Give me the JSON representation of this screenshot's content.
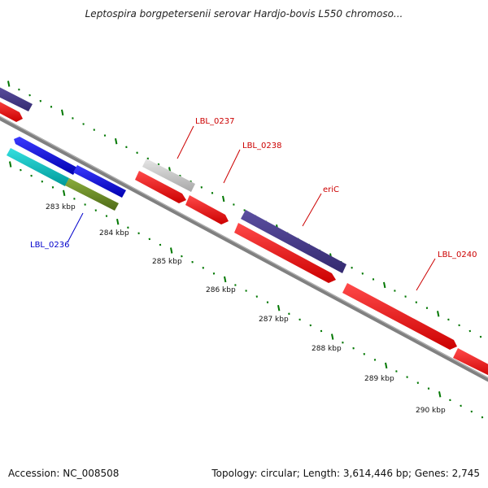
{
  "title": "Leptospira borgpetersenii serovar Hardjo-bovis L550 chromoso...",
  "footer": {
    "accession": "Accession: NC_008508",
    "topology": "Topology: circular; Length: 3,614,446 bp; Genes: 2,745"
  },
  "tick_labels": [
    "283 kbp",
    "284 kbp",
    "285 kbp",
    "286 kbp",
    "287 kbp",
    "288 kbp",
    "289 kbp",
    "290 kbp"
  ],
  "gene_labels": [
    {
      "text": "LBL_0237",
      "color": "#cc0000"
    },
    {
      "text": "LBL_0238",
      "color": "#cc0000"
    },
    {
      "text": "eriC",
      "color": "#cc0000"
    },
    {
      "text": "LBL_0240",
      "color": "#cc0000"
    },
    {
      "text": "LBL_0236",
      "color": "#0000cc"
    }
  ],
  "colors": {
    "backbone": "#808080",
    "cds_red": "#ff0000",
    "blue": "#0000ff",
    "slate": "#483d8b",
    "cyan": "#00cccc",
    "olive": "#6b8e23",
    "grey_feature": "#c8c8c8",
    "tick_green": "#007700"
  }
}
